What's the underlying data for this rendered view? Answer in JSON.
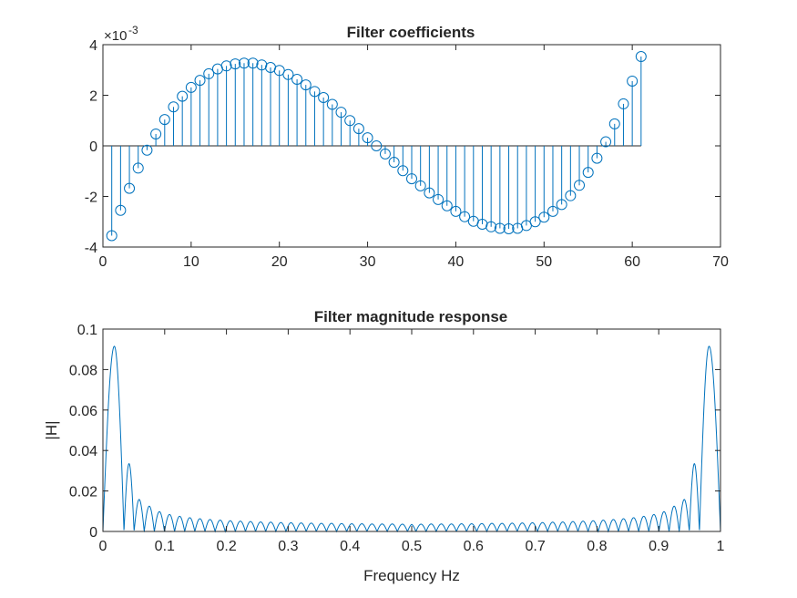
{
  "colors": {
    "series": "#0072bd",
    "axes": "#262626",
    "background": "#ffffff"
  },
  "chart_data": [
    {
      "type": "stem",
      "title": "Filter coefficients",
      "xlabel": "",
      "ylabel": "",
      "y_exponent_label": "×10",
      "y_exponent": "-3",
      "xlim": [
        0,
        70
      ],
      "ylim": [
        -4,
        4
      ],
      "xticks": [
        0,
        10,
        20,
        30,
        40,
        50,
        60,
        70
      ],
      "yticks": [
        -4,
        -2,
        0,
        2,
        4
      ],
      "xtick_labels": [
        "0",
        "10",
        "20",
        "30",
        "40",
        "50",
        "60",
        "70"
      ],
      "ytick_labels": [
        "-4",
        "-2",
        "0",
        "2",
        "4"
      ],
      "grid": false,
      "x": [
        1,
        2,
        3,
        4,
        5,
        6,
        7,
        8,
        9,
        10,
        11,
        12,
        13,
        14,
        15,
        16,
        17,
        18,
        19,
        20,
        21,
        22,
        23,
        24,
        25,
        26,
        27,
        28,
        29,
        30,
        31,
        32,
        33,
        34,
        35,
        36,
        37,
        38,
        39,
        40,
        41,
        42,
        43,
        44,
        45,
        46,
        47,
        48,
        49,
        50,
        51,
        52,
        53,
        54,
        55,
        56,
        57,
        58,
        59,
        60,
        61
      ],
      "values": [
        -3.55,
        -2.55,
        -1.68,
        -0.88,
        -0.17,
        0.47,
        1.04,
        1.54,
        1.96,
        2.31,
        2.59,
        2.85,
        3.04,
        3.16,
        3.24,
        3.27,
        3.27,
        3.2,
        3.1,
        2.98,
        2.82,
        2.63,
        2.41,
        2.15,
        1.91,
        1.64,
        1.33,
        1.0,
        0.68,
        0.32,
        0.0,
        -0.32,
        -0.65,
        -0.98,
        -1.3,
        -1.58,
        -1.86,
        -2.12,
        -2.37,
        -2.59,
        -2.8,
        -2.98,
        -3.1,
        -3.2,
        -3.26,
        -3.28,
        -3.26,
        -3.15,
        -3.0,
        -2.82,
        -2.59,
        -2.32,
        -1.97,
        -1.56,
        -1.05,
        -0.49,
        0.16,
        0.87,
        1.66,
        2.56,
        3.53
      ]
    },
    {
      "type": "line",
      "title": "Filter magnitude response",
      "xlabel": "Frequency Hz",
      "ylabel": "|H|",
      "xlim": [
        0,
        1
      ],
      "ylim": [
        0,
        0.1
      ],
      "xticks": [
        0,
        0.1,
        0.2,
        0.3,
        0.4,
        0.5,
        0.6,
        0.7,
        0.8,
        0.9,
        1
      ],
      "yticks": [
        0,
        0.02,
        0.04,
        0.06,
        0.08,
        0.1
      ],
      "xtick_labels": [
        "0",
        "0.1",
        "0.2",
        "0.3",
        "0.4",
        "0.5",
        "0.6",
        "0.7",
        "0.8",
        "0.9",
        "1"
      ],
      "ytick_labels": [
        "0",
        "0.02",
        "0.04",
        "0.06",
        "0.08",
        "0.1"
      ],
      "grid": false,
      "main_lobe_peak": {
        "x": 0.0185,
        "y": 0.0915
      },
      "side_lobe_peaks": [
        0.0335,
        0.0158,
        0.0125,
        0.0098,
        0.0084,
        0.0075,
        0.0068,
        0.0063,
        0.0059,
        0.0056,
        0.0053,
        0.0051,
        0.0049,
        0.0047,
        0.0046,
        0.0044,
        0.0043,
        0.0042,
        0.0041,
        0.004,
        0.004,
        0.0039,
        0.0038,
        0.0038,
        0.0037,
        0.0037,
        0.0037,
        0.0036,
        0.0036,
        0.0036
      ]
    }
  ]
}
